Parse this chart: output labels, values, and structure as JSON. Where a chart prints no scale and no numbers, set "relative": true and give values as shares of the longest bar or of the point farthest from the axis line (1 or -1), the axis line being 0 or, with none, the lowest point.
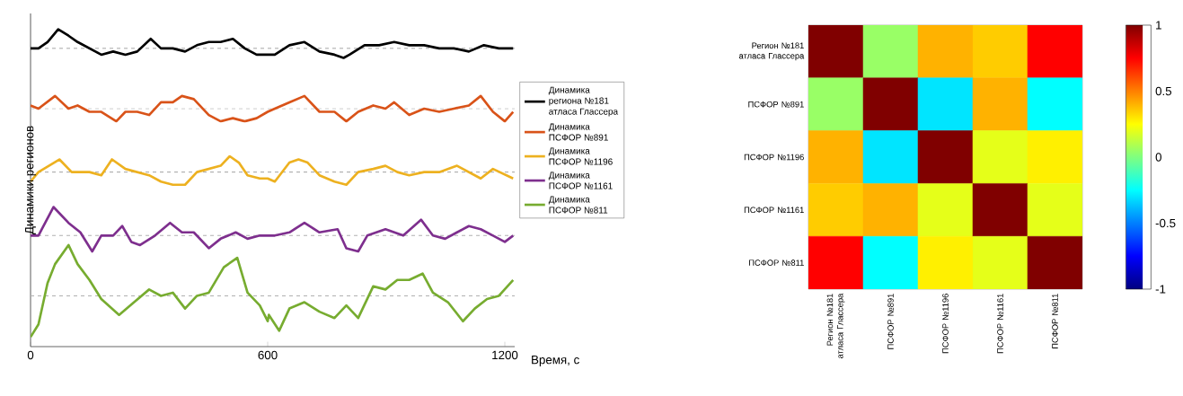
{
  "chart_data": [
    {
      "type": "line",
      "relative": true,
      "xlabel": "Время, с",
      "ylabel": "Динамики регионов",
      "xlim": [
        0,
        1225
      ],
      "xticks": [
        0,
        600,
        1200
      ],
      "legend": "right",
      "series": [
        {
          "name": "Динамика региона №181 атласа Глассера",
          "color": "#000000",
          "x": [
            0,
            20,
            43,
            70,
            96,
            119,
            149,
            179,
            209,
            240,
            270,
            304,
            330,
            360,
            391,
            421,
            451,
            481,
            512,
            542,
            572,
            600,
            618,
            655,
            693,
            731,
            769,
            792,
            807,
            845,
            882,
            920,
            958,
            996,
            1034,
            1071,
            1109,
            1147,
            1185,
            1221
          ],
          "values": [
            0.94,
            0.94,
            0.96,
            1.0,
            0.98,
            0.96,
            0.94,
            0.92,
            0.93,
            0.92,
            0.93,
            0.97,
            0.94,
            0.94,
            0.93,
            0.95,
            0.96,
            0.96,
            0.97,
            0.94,
            0.92,
            0.92,
            0.92,
            0.95,
            0.96,
            0.93,
            0.92,
            0.91,
            0.92,
            0.95,
            0.95,
            0.96,
            0.95,
            0.95,
            0.94,
            0.94,
            0.93,
            0.95,
            0.94,
            0.94
          ]
        },
        {
          "name": "Динамика ПСФОР №891",
          "color": "#d95319",
          "x": [
            0,
            20,
            62,
            96,
            119,
            149,
            179,
            217,
            240,
            270,
            300,
            330,
            360,
            383,
            413,
            451,
            481,
            512,
            542,
            572,
            600,
            618,
            655,
            693,
            731,
            769,
            799,
            829,
            867,
            898,
            920,
            958,
            996,
            1034,
            1071,
            1109,
            1139,
            1170,
            1200,
            1221
          ],
          "values": [
            0.76,
            0.75,
            0.79,
            0.75,
            0.76,
            0.74,
            0.74,
            0.71,
            0.74,
            0.74,
            0.73,
            0.77,
            0.77,
            0.79,
            0.78,
            0.73,
            0.71,
            0.72,
            0.71,
            0.72,
            0.74,
            0.75,
            0.77,
            0.79,
            0.74,
            0.74,
            0.71,
            0.74,
            0.76,
            0.75,
            0.77,
            0.73,
            0.75,
            0.74,
            0.75,
            0.76,
            0.79,
            0.74,
            0.71,
            0.74
          ]
        },
        {
          "name": "Динамика ПСФОР №1196",
          "color": "#edb120",
          "x": [
            0,
            20,
            73,
            104,
            149,
            179,
            206,
            240,
            270,
            300,
            330,
            360,
            391,
            421,
            451,
            481,
            504,
            527,
            549,
            580,
            600,
            618,
            655,
            678,
            701,
            731,
            769,
            799,
            829,
            867,
            898,
            928,
            958,
            996,
            1034,
            1079,
            1109,
            1139,
            1170,
            1221
          ],
          "values": [
            0.52,
            0.55,
            0.59,
            0.55,
            0.55,
            0.54,
            0.59,
            0.56,
            0.55,
            0.54,
            0.52,
            0.51,
            0.51,
            0.55,
            0.56,
            0.57,
            0.6,
            0.58,
            0.54,
            0.53,
            0.53,
            0.52,
            0.58,
            0.59,
            0.58,
            0.54,
            0.52,
            0.51,
            0.55,
            0.56,
            0.57,
            0.55,
            0.54,
            0.55,
            0.55,
            0.57,
            0.55,
            0.53,
            0.56,
            0.53
          ]
        },
        {
          "name": "Динамика ПСФОР №1161",
          "color": "#7e2f8e",
          "x": [
            0,
            20,
            58,
            96,
            126,
            156,
            179,
            209,
            232,
            255,
            277,
            315,
            353,
            383,
            413,
            451,
            481,
            519,
            549,
            580,
            600,
            618,
            655,
            693,
            731,
            777,
            799,
            829,
            852,
            898,
            943,
            988,
            1018,
            1049,
            1079,
            1109,
            1139,
            1170,
            1200,
            1221
          ],
          "values": [
            0.35,
            0.35,
            0.44,
            0.39,
            0.36,
            0.3,
            0.35,
            0.35,
            0.38,
            0.33,
            0.32,
            0.35,
            0.39,
            0.36,
            0.36,
            0.31,
            0.34,
            0.36,
            0.34,
            0.35,
            0.35,
            0.35,
            0.36,
            0.39,
            0.36,
            0.37,
            0.31,
            0.3,
            0.35,
            0.37,
            0.35,
            0.4,
            0.35,
            0.34,
            0.36,
            0.38,
            0.37,
            0.35,
            0.33,
            0.35
          ]
        },
        {
          "name": "Динамика ПСФОР №811",
          "color": "#77ac30",
          "x": [
            0,
            20,
            43,
            62,
            96,
            119,
            149,
            179,
            224,
            262,
            300,
            330,
            360,
            391,
            421,
            451,
            489,
            523,
            549,
            580,
            600,
            603,
            629,
            655,
            693,
            731,
            769,
            799,
            829,
            867,
            898,
            928,
            958,
            992,
            1018,
            1056,
            1094,
            1124,
            1155,
            1185,
            1221
          ],
          "values": [
            0.03,
            0.07,
            0.2,
            0.26,
            0.32,
            0.26,
            0.21,
            0.15,
            0.1,
            0.14,
            0.18,
            0.16,
            0.17,
            0.12,
            0.16,
            0.17,
            0.25,
            0.28,
            0.17,
            0.13,
            0.08,
            0.1,
            0.05,
            0.12,
            0.14,
            0.11,
            0.09,
            0.13,
            0.09,
            0.19,
            0.18,
            0.21,
            0.21,
            0.23,
            0.17,
            0.14,
            0.08,
            0.12,
            0.15,
            0.16,
            0.21
          ]
        }
      ],
      "ref_lines": [
        {
          "axis": "y",
          "value": 0.94,
          "color": "#b0b0b0",
          "line_style": "dashed"
        },
        {
          "axis": "y",
          "value": 0.75,
          "color": "#b0b0b0",
          "line_style": "dashed"
        },
        {
          "axis": "y",
          "value": 0.55,
          "color": "#b0b0b0",
          "line_style": "dashed"
        },
        {
          "axis": "y",
          "value": 0.35,
          "color": "#b0b0b0",
          "line_style": "dashed"
        },
        {
          "axis": "y",
          "value": 0.16,
          "color": "#b0b0b0",
          "line_style": "dashed"
        }
      ]
    },
    {
      "type": "heatmap",
      "categories": [
        "Регион №181 атласа Глассера",
        "ПСФОР №891",
        "ПСФОР №1196",
        "ПСФОР №1161",
        "ПСФОР №811"
      ],
      "y_categories": [
        "Регион №181 атласа Глассера",
        "ПСФОР №891",
        "ПСФОР №1196",
        "ПСФОР №1161",
        "ПСФОР №811"
      ],
      "cells": [
        [
          1,
          0.05,
          0.4,
          0.35,
          0.75
        ],
        [
          0.05,
          1,
          -0.3,
          0.4,
          -0.25
        ],
        [
          0.4,
          -0.3,
          1,
          0.2,
          0.28
        ],
        [
          0.35,
          0.4,
          0.2,
          1,
          0.2
        ],
        [
          0.75,
          -0.25,
          0.28,
          0.2,
          1
        ]
      ],
      "clim": [
        -1,
        1
      ],
      "cticks": [
        -1,
        -0.5,
        0,
        0.5,
        1
      ]
    }
  ]
}
